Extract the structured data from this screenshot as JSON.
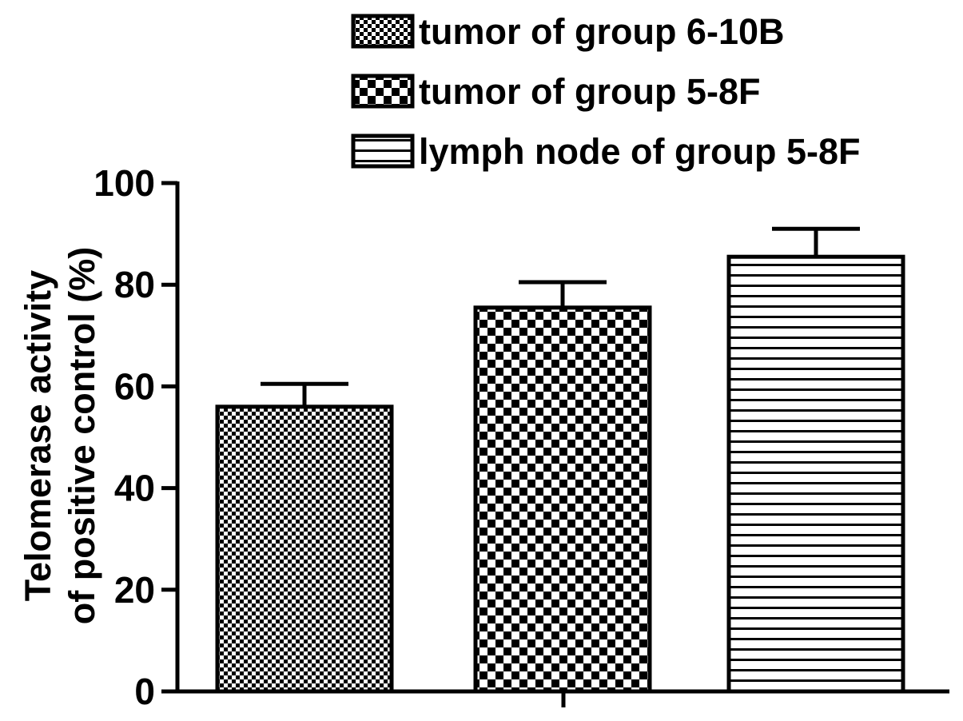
{
  "chart_data": {
    "type": "bar",
    "title": "",
    "xlabel": "",
    "ylabel_lines": [
      "Telomerase activity",
      "of positive control (%)"
    ],
    "ylim": [
      0,
      100
    ],
    "yticks": [
      0,
      20,
      40,
      60,
      80,
      100
    ],
    "grid": false,
    "legend_position": "top-right",
    "series": [
      {
        "name": "tumor of group 6-10B",
        "value": 56,
        "error": 4.5,
        "pattern": "fine-dots"
      },
      {
        "name": "tumor of group 5-8F",
        "value": 75.5,
        "error": 5,
        "pattern": "checker"
      },
      {
        "name": "lymph node of group 5-8F",
        "value": 85.5,
        "error": 5.5,
        "pattern": "hlines"
      }
    ],
    "colors": {
      "ink": "#000000",
      "background": "#ffffff"
    }
  }
}
